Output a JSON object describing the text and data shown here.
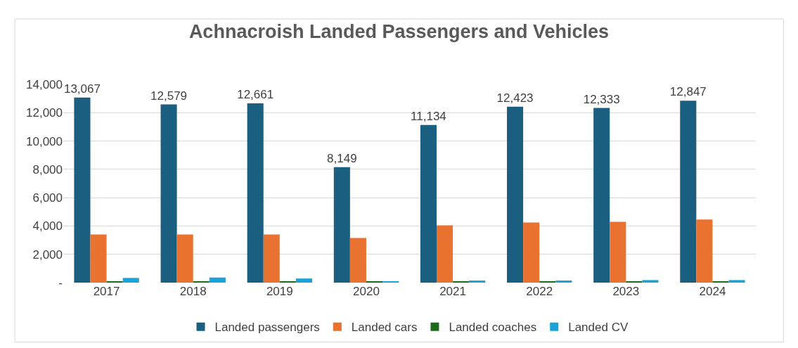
{
  "chart_data": {
    "type": "bar",
    "title": "Achnacroish Landed Passengers and Vehicles",
    "categories": [
      "2017",
      "2018",
      "2019",
      "2020",
      "2021",
      "2022",
      "2023",
      "2024"
    ],
    "series": [
      {
        "name": "Landed passengers",
        "color": "#1a5e80",
        "values": [
          13067,
          12579,
          12661,
          8149,
          11134,
          12423,
          12333,
          12847
        ],
        "value_labels": [
          "13,067",
          "12,579",
          "12,661",
          "8,149",
          "11,134",
          "12,423",
          "12,333",
          "12,847"
        ]
      },
      {
        "name": "Landed cars",
        "color": "#ea7231",
        "values": [
          3400,
          3400,
          3400,
          3150,
          4050,
          4250,
          4300,
          4450
        ]
      },
      {
        "name": "Landed coaches",
        "color": "#1b6b1b",
        "values": [
          50,
          50,
          50,
          50,
          50,
          50,
          50,
          50
        ]
      },
      {
        "name": "Landed CV",
        "color": "#1aa3d8",
        "values": [
          330,
          360,
          290,
          100,
          150,
          150,
          180,
          180
        ]
      }
    ],
    "ylim": [
      0,
      14000
    ],
    "yticks": [
      {
        "value": 0,
        "label": "-"
      },
      {
        "value": 2000,
        "label": "2,000"
      },
      {
        "value": 4000,
        "label": "4,000"
      },
      {
        "value": 6000,
        "label": "6,000"
      },
      {
        "value": 8000,
        "label": "8,000"
      },
      {
        "value": 10000,
        "label": "10,000"
      },
      {
        "value": 12000,
        "label": "12,000"
      },
      {
        "value": 14000,
        "label": "14,000"
      }
    ],
    "grid": "y",
    "legend": "bottom"
  }
}
